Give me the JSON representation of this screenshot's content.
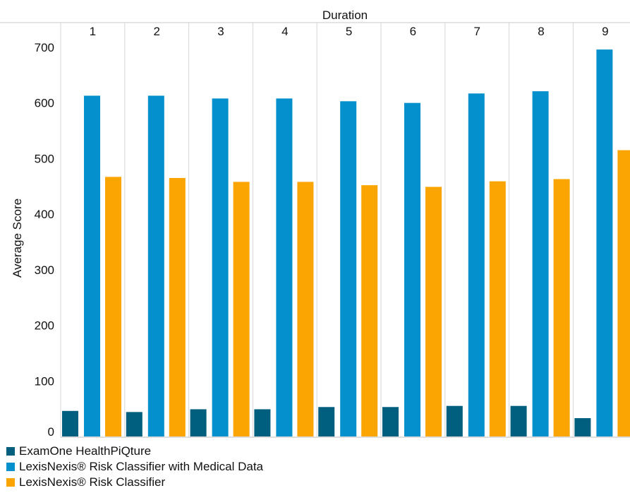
{
  "chart_data": {
    "type": "bar",
    "xlabel": "Duration",
    "ylabel": "Average Score",
    "categories": [
      "1",
      "2",
      "3",
      "4",
      "5",
      "6",
      "7",
      "8",
      "9"
    ],
    "ylim": [
      0,
      700
    ],
    "yticks": [
      0,
      100,
      200,
      300,
      400,
      500,
      600,
      700
    ],
    "grid": {
      "vertical": true,
      "horizontal": false
    },
    "legend_position": "bottom-left",
    "series": [
      {
        "name": "ExamOne HealthPiQture",
        "color": "#005e7f",
        "values": [
          46,
          44,
          49,
          49,
          53,
          53,
          55,
          55,
          33
        ]
      },
      {
        "name": "LexisNexis® Risk Classifier with Medical Data",
        "color": "#0390cc",
        "values": [
          613,
          613,
          608,
          608,
          603,
          600,
          617,
          621,
          696
        ]
      },
      {
        "name": "LexisNexis® Risk Classifier",
        "color": "#fba502",
        "values": [
          467,
          465,
          458,
          458,
          452,
          449,
          459,
          463,
          515
        ]
      }
    ]
  }
}
